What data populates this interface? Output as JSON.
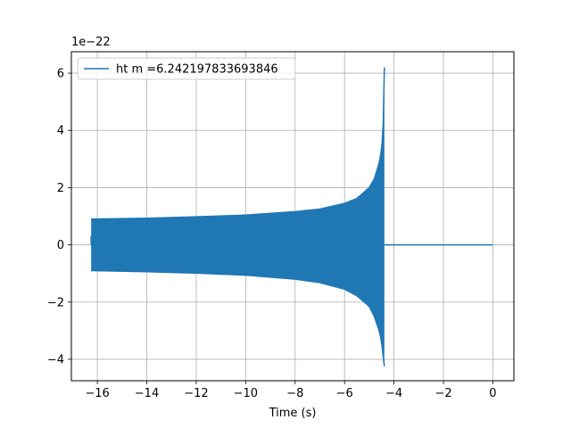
{
  "chart_data": {
    "type": "line",
    "title": "",
    "xlabel": "Time (s)",
    "ylabel": "",
    "y_scale_note": "1e−22",
    "xlim": [
      -17.05,
      0.85
    ],
    "ylim": [
      -4.75,
      6.75
    ],
    "x_ticks": [
      -16,
      -14,
      -12,
      -10,
      -8,
      -6,
      -4,
      -2,
      0
    ],
    "x_tick_labels": [
      "−16",
      "−14",
      "−12",
      "−10",
      "−8",
      "−6",
      "−4",
      "−2",
      "0"
    ],
    "y_ticks": [
      -4,
      -2,
      0,
      2,
      4,
      6
    ],
    "y_tick_labels": [
      "−4",
      "−2",
      "0",
      "2",
      "4",
      "6"
    ],
    "grid": true,
    "legend_position": "upper-left",
    "series": [
      {
        "name": "ht m =6.242197833693846",
        "color": "#1f77b4",
        "start_time": -16.25,
        "merger_time": -4.38,
        "end_time": 0.0,
        "envelope": {
          "t": [
            -16.25,
            -14,
            -12,
            -10,
            -8,
            -7,
            -6,
            -5.5,
            -5,
            -4.8,
            -4.6,
            -4.5,
            -4.45,
            -4.41,
            -4.39
          ],
          "upper": [
            0.9,
            0.93,
            0.98,
            1.04,
            1.16,
            1.25,
            1.45,
            1.62,
            2.0,
            2.3,
            2.85,
            3.35,
            3.9,
            4.9,
            6.2
          ],
          "lower": [
            -0.9,
            -0.94,
            -0.99,
            -1.06,
            -1.2,
            -1.32,
            -1.55,
            -1.78,
            -2.15,
            -2.5,
            -3.0,
            -3.4,
            -3.8,
            -4.1,
            -4.25
          ]
        },
        "post_merger_value": 0.0
      }
    ]
  }
}
